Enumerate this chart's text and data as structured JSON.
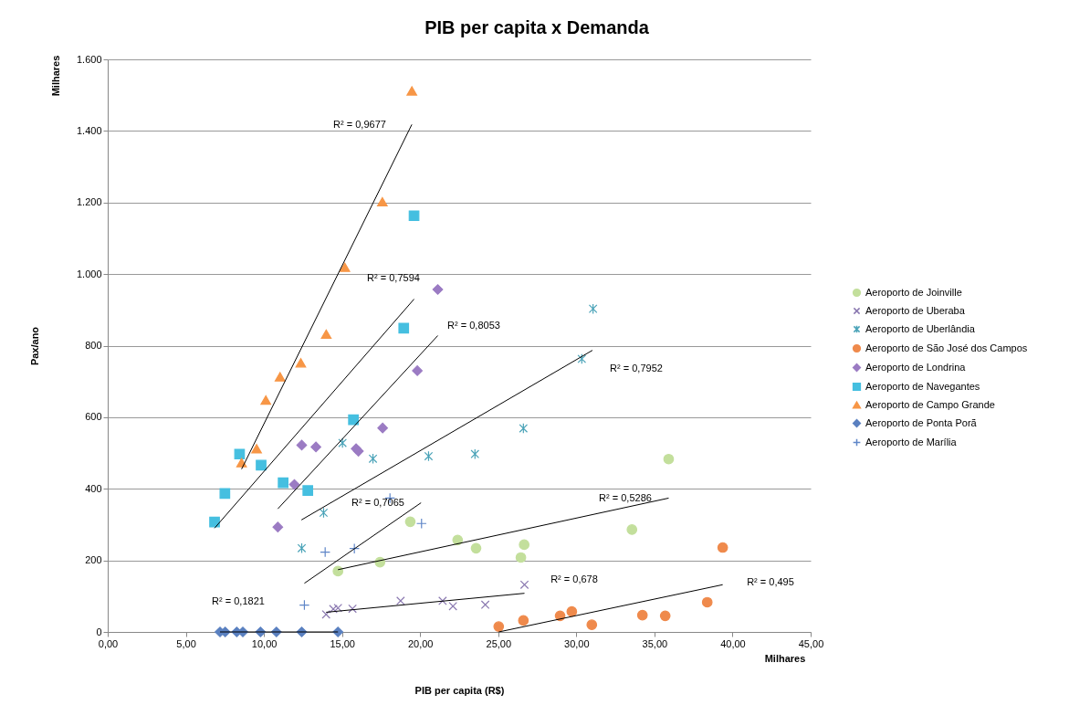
{
  "chart_data": {
    "type": "scatter",
    "title": "PIB per capita x Demanda",
    "xlabel": "PIB per capita (R$)",
    "ylabel": "Pax/ano",
    "xlim": [
      0,
      45
    ],
    "ylim": [
      0,
      1600
    ],
    "xticks": [
      {
        "value": 0,
        "label": "0,00"
      },
      {
        "value": 5,
        "label": "5,00"
      },
      {
        "value": 10,
        "label": "10,00"
      },
      {
        "value": 15,
        "label": "15,00"
      },
      {
        "value": 20,
        "label": "20,00"
      },
      {
        "value": 25,
        "label": "25,00"
      },
      {
        "value": 30,
        "label": "30,00"
      },
      {
        "value": 35,
        "label": "35,00"
      },
      {
        "value": 40,
        "label": "40,00"
      },
      {
        "value": 45,
        "label": "45,00"
      }
    ],
    "yticks": [
      0,
      200,
      400,
      600,
      800,
      {
        "value": 1000,
        "label": "1.000"
      },
      {
        "value": 1200,
        "label": "1.200"
      },
      {
        "value": 1400,
        "label": "1.400"
      },
      {
        "value": 1600,
        "label": "1.600"
      }
    ],
    "grid": "y",
    "legend": "right",
    "series": [
      {
        "name": "Aeroporto de Joinville",
        "color": "#c3df9c",
        "marker": "circle",
        "x": [
          14.74,
          17.43,
          19.37,
          22.4,
          23.58,
          26.45,
          26.66,
          33.56,
          35.91
        ],
        "values": [
          170,
          195,
          308,
          257,
          234,
          208,
          244,
          286,
          483
        ]
      },
      {
        "name": "Aeroporto de Uberaba",
        "color": "#8a78b0",
        "marker": "x",
        "x": [
          13.98,
          14.44,
          14.74,
          15.67,
          18.75,
          21.44,
          22.1,
          24.17,
          26.68
        ],
        "values": [
          49,
          64,
          67,
          65,
          87,
          87,
          72,
          76,
          132
        ]
      },
      {
        "name": "Aeroporto de Uberlândia",
        "color": "#4aa3b8",
        "x": [
          12.42,
          13.82,
          15.03,
          16.98,
          20.54,
          23.51,
          26.61,
          30.35,
          31.07
        ],
        "values": [
          234,
          333,
          528,
          484,
          491,
          497,
          569,
          763,
          903
        ]
      },
      {
        "name": "Aeroporto de São José dos Campos",
        "color": "#ef8a4c",
        "marker": "circle",
        "x": [
          25.03,
          26.61,
          28.96,
          29.71,
          30.99,
          34.23,
          35.69,
          38.38,
          39.37
        ],
        "values": [
          15,
          32,
          45,
          57,
          20,
          47,
          45,
          83,
          236
        ]
      },
      {
        "name": "Aeroporto de Londrina",
        "color": "#9b7bc3",
        "marker": "diamond",
        "x": [
          10.89,
          11.95,
          12.42,
          13.33,
          15.9,
          16.05,
          17.6,
          19.82,
          21.13
        ],
        "values": [
          293,
          412,
          522,
          517,
          512,
          505,
          570,
          730,
          957
        ]
      },
      {
        "name": "Aeroporto de Navegantes",
        "color": "#45bfe0",
        "marker": "square",
        "x": [
          6.84,
          7.5,
          8.44,
          9.82,
          11.23,
          12.81,
          15.73,
          18.95,
          19.61
        ],
        "values": [
          307,
          387,
          497,
          466,
          417,
          395,
          593,
          849,
          1163
        ]
      },
      {
        "name": "Aeroporto de Campo Grande",
        "color": "#f79646",
        "marker": "triangle",
        "x": [
          8.57,
          9.53,
          10.12,
          11.03,
          12.36,
          13.99,
          15.18,
          17.58,
          19.47
        ],
        "values": [
          473,
          512,
          648,
          713,
          752,
          832,
          1019,
          1202,
          1512
        ]
      },
      {
        "name": "Aeroporto de Ponta Porã",
        "color": "#5a80c0",
        "marker": "diamond",
        "x": [
          7.19,
          7.52,
          8.26,
          8.65,
          9.78,
          10.8,
          12.42,
          14.74
        ],
        "values": [
          0,
          0,
          0,
          0,
          0,
          0,
          0,
          0
        ]
      },
      {
        "name": "Aeroporto de Marília",
        "color": "#5f86c8",
        "marker": "cross",
        "x": [
          12.59,
          13.92,
          15.79,
          18.07,
          20.09
        ],
        "values": [
          75,
          223,
          233,
          374,
          303
        ]
      },
      {
        "type": "line",
        "color": "#000000",
        "x": [
          14.74,
          35.91
        ],
        "values": [
          174,
          374
        ]
      },
      {
        "type": "line",
        "color": "#000000",
        "x": [
          13.98,
          26.68
        ],
        "values": [
          55,
          108
        ]
      },
      {
        "type": "line",
        "color": "#000000",
        "x": [
          12.4,
          31.03
        ],
        "values": [
          313,
          787
        ]
      },
      {
        "type": "line",
        "color": "#000000",
        "x": [
          25.03,
          39.37
        ],
        "values": [
          0,
          132
        ]
      },
      {
        "type": "line",
        "color": "#000000",
        "x": [
          10.89,
          21.13
        ],
        "values": [
          344,
          828
        ]
      },
      {
        "type": "line",
        "color": "#000000",
        "x": [
          6.84,
          19.61
        ],
        "values": [
          290,
          930
        ]
      },
      {
        "type": "line",
        "color": "#000000",
        "x": [
          8.57,
          19.47
        ],
        "values": [
          455,
          1418
        ]
      },
      {
        "type": "line",
        "color": "#000000",
        "x": [
          7.19,
          14.74
        ],
        "values": [
          0,
          0
        ]
      },
      {
        "type": "line",
        "color": "#000000",
        "x": [
          12.59,
          20.06
        ],
        "values": [
          136,
          361
        ]
      }
    ],
    "annotations": [
      "Milhares",
      "Milhares",
      "R² = 0,9677",
      "R² = 0,7594",
      "R² = 0,8053",
      "R² = 0,7952",
      "R² = 0,7065",
      "R² = 0,5286",
      "R² = 0,678",
      "R² = 0,495",
      "R² = 0,1821"
    ]
  }
}
